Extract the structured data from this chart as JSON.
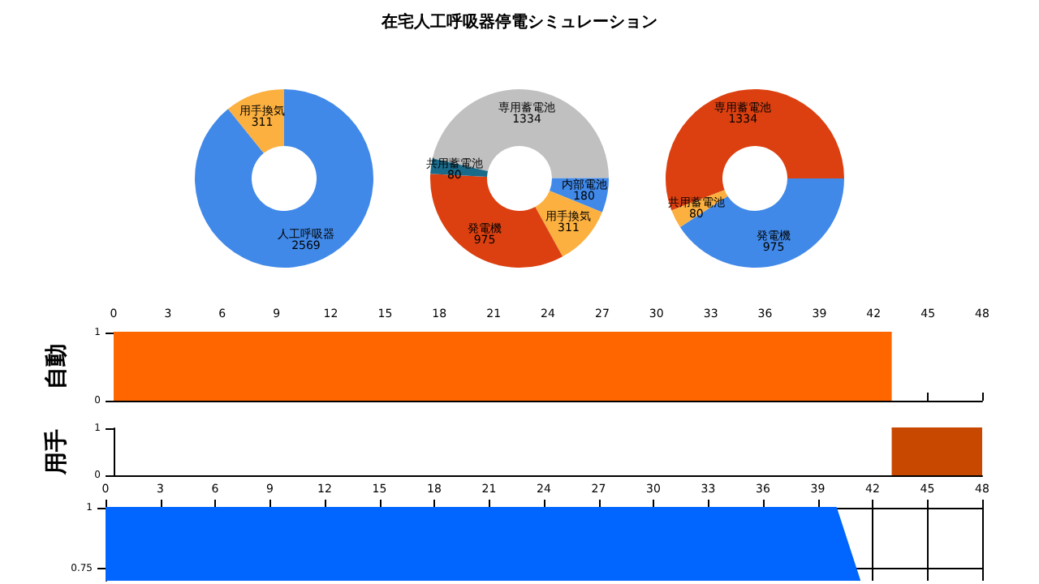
{
  "chart_data": [
    {
      "type": "donut",
      "categories": [
        "人工呼吸器",
        "用手換気"
      ],
      "values": [
        2569,
        311
      ],
      "colors": [
        "#4189e8",
        "#fbb040"
      ],
      "data_labels": true
    },
    {
      "type": "donut",
      "title": "在宅人工呼吸器停電シミュレーション",
      "categories": [
        "専用蓄電池",
        "内部電池",
        "用手換気",
        "発電機",
        "共用蓄電池"
      ],
      "values": [
        1334,
        180,
        311,
        975,
        80
      ],
      "colors": [
        "#c0c0c0",
        "#4189e8",
        "#fbb040",
        "#dc4010",
        "#1a6a8a"
      ],
      "data_labels": true
    },
    {
      "type": "donut",
      "categories": [
        "専用蓄電池",
        "発電機",
        "共用蓄電池"
      ],
      "values": [
        1334,
        975,
        80
      ],
      "colors": [
        "#dc4010",
        "#4189e8",
        "#fbb040"
      ],
      "data_labels": true
    },
    {
      "type": "area",
      "ylabel": "自動",
      "x": [
        0,
        43
      ],
      "series": [
        {
          "color": "#ff6600",
          "values": [
            1,
            1
          ]
        }
      ],
      "xlim": [
        0,
        48
      ],
      "xticks": [
        0,
        3,
        6,
        9,
        12,
        15,
        18,
        21,
        24,
        27,
        30,
        33,
        36,
        39,
        42,
        45,
        48
      ],
      "ylim": [
        0,
        1
      ],
      "yticks": [
        0,
        1
      ]
    },
    {
      "type": "area",
      "ylabel": "用手",
      "x": [
        43,
        48
      ],
      "series": [
        {
          "color": "#c84800",
          "values": [
            1,
            1
          ]
        }
      ],
      "xlim": [
        0,
        48
      ],
      "xticks": [
        0,
        3,
        6,
        9,
        12,
        15,
        18,
        21,
        24,
        27,
        30,
        33,
        36,
        39,
        42,
        45,
        48
      ],
      "ylim": [
        0,
        1
      ],
      "yticks": [
        0,
        1
      ],
      "tick_labels": "y"
    },
    {
      "type": "area",
      "x": [
        0,
        40,
        41.3
      ],
      "series": [
        {
          "color": "#0066ff",
          "values": [
            1,
            1,
            0.7
          ]
        }
      ],
      "xlim": [
        0,
        48
      ],
      "xticks": [
        0,
        3,
        6,
        9,
        12,
        15,
        18,
        21,
        24,
        27,
        30,
        33,
        36,
        39,
        42,
        45,
        48
      ],
      "ylim": [
        0.7,
        1
      ],
      "yticks": [
        0.75,
        1
      ],
      "grid": true
    }
  ]
}
